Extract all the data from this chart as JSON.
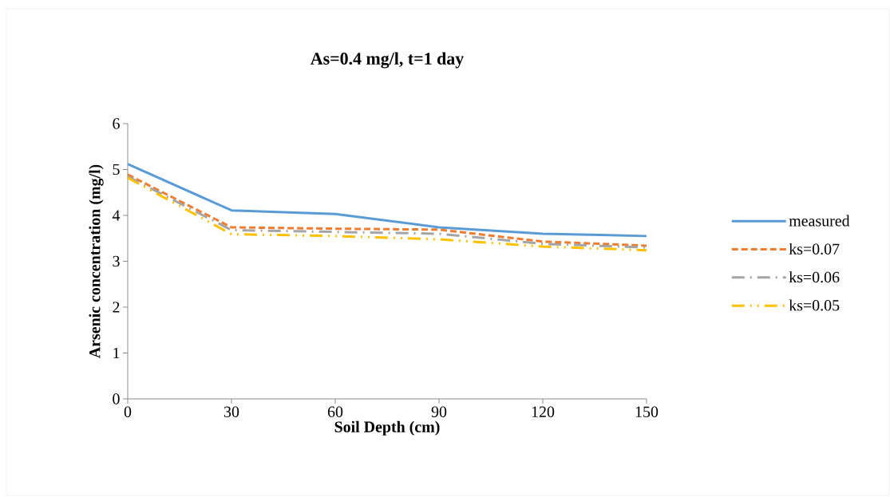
{
  "chart_data": {
    "type": "line",
    "title": "As=0.4 mg/l, t=1 day",
    "xlabel": "Soil Depth (cm)",
    "ylabel": "Arsenic concentration (mg/l)",
    "x": [
      0,
      30,
      60,
      90,
      120,
      150
    ],
    "series": [
      {
        "name": "measured",
        "color": "#5b9bd5",
        "line_style": "solid",
        "values": [
          5.12,
          4.11,
          4.03,
          3.74,
          3.6,
          3.55
        ]
      },
      {
        "name": "ks=0.07",
        "color": "#ed7d31",
        "line_style": "dashed",
        "values": [
          4.89,
          3.74,
          3.71,
          3.69,
          3.43,
          3.34
        ]
      },
      {
        "name": "ks=0.06",
        "color": "#a5a5a5",
        "line_style": "dashdot",
        "values": [
          4.85,
          3.68,
          3.64,
          3.6,
          3.38,
          3.3
        ]
      },
      {
        "name": "ks=0.05",
        "color": "#ffc000",
        "line_style": "dashdotdot",
        "values": [
          4.82,
          3.59,
          3.55,
          3.48,
          3.32,
          3.24
        ]
      }
    ],
    "xlim": [
      0,
      150
    ],
    "xticks": [
      0,
      30,
      60,
      90,
      120,
      150
    ],
    "ylim": [
      0,
      6
    ],
    "yticks": [
      0,
      1,
      2,
      3,
      4,
      5,
      6
    ],
    "grid": false,
    "legend": "right",
    "marker": "none"
  }
}
